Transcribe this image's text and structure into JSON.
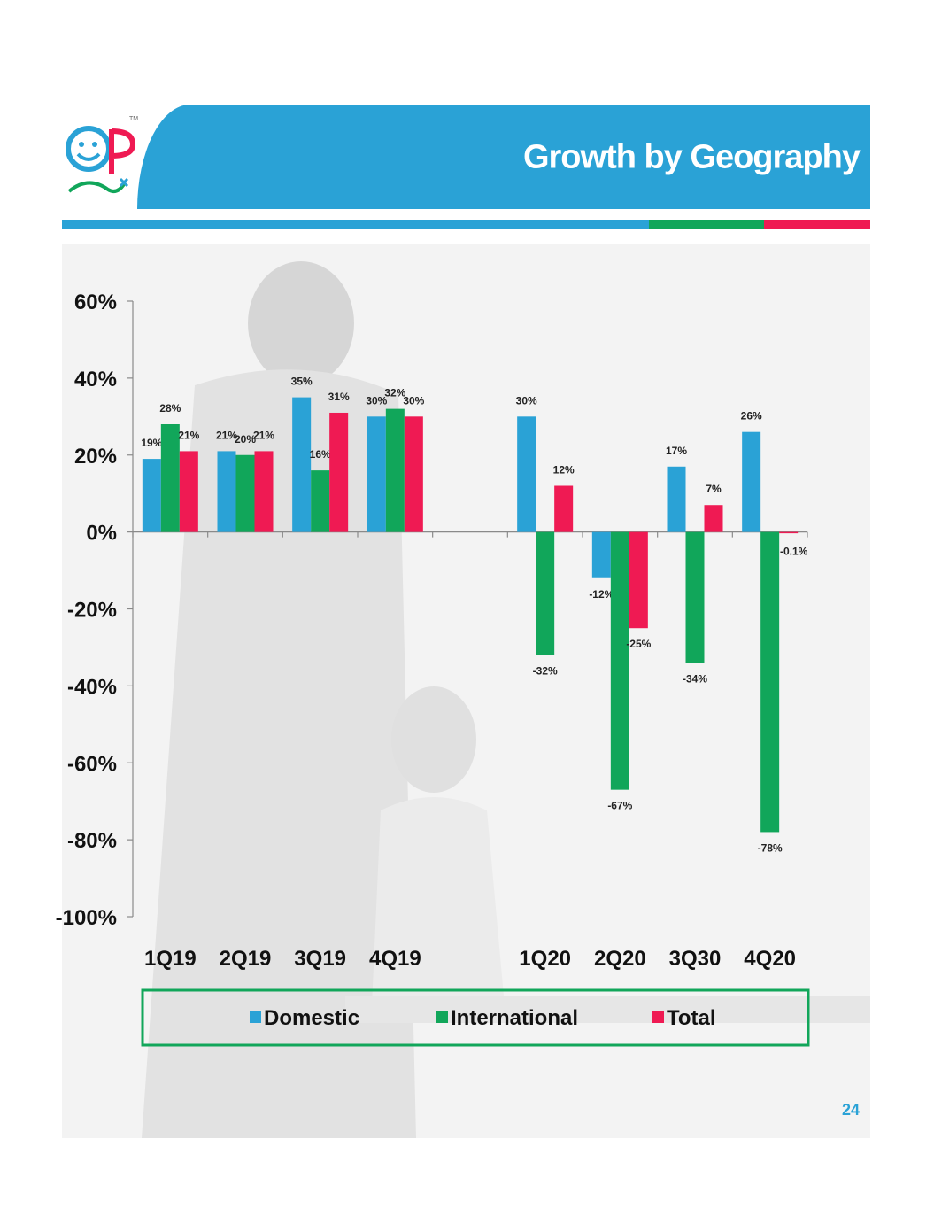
{
  "header": {
    "title": "Growth by Geography"
  },
  "page_number": "24",
  "colors": {
    "domestic": "#2aa2d6",
    "international": "#11a65a",
    "total": "#ef1a53",
    "banner": "#2aa2d6"
  },
  "chart_data": {
    "type": "bar",
    "categories": [
      "1Q19",
      "2Q19",
      "3Q19",
      "4Q19",
      "",
      "1Q20",
      "2Q20",
      "3Q30",
      "4Q20"
    ],
    "series": [
      {
        "name": "Domestic",
        "values": [
          19,
          21,
          35,
          30,
          null,
          30,
          -12,
          17,
          26
        ],
        "labels": [
          "19%",
          "21%",
          "35%",
          "30%",
          "",
          "30%",
          "-12%",
          "17%",
          "26%"
        ]
      },
      {
        "name": "International",
        "values": [
          28,
          20,
          16,
          32,
          null,
          -32,
          -67,
          -34,
          -78
        ],
        "labels": [
          "28%",
          "20%",
          "16%",
          "32%",
          "",
          "-32%",
          "-67%",
          "-34%",
          "-78%"
        ]
      },
      {
        "name": "Total",
        "values": [
          21,
          21,
          31,
          30,
          null,
          12,
          -25,
          7,
          -0.1
        ],
        "labels": [
          "21%",
          "21%",
          "31%",
          "30%",
          "",
          "12%",
          "-25%",
          "7%",
          "-0.1%"
        ]
      }
    ],
    "ylim": [
      -100,
      60
    ],
    "yticks": [
      60,
      40,
      20,
      0,
      -20,
      -40,
      -60,
      -80,
      -100
    ],
    "ytick_labels": [
      "60%",
      "40%",
      "20%",
      "0%",
      "-20%",
      "-40%",
      "-60%",
      "-80%",
      "-100%"
    ],
    "legend_position": "bottom",
    "grid": false
  }
}
